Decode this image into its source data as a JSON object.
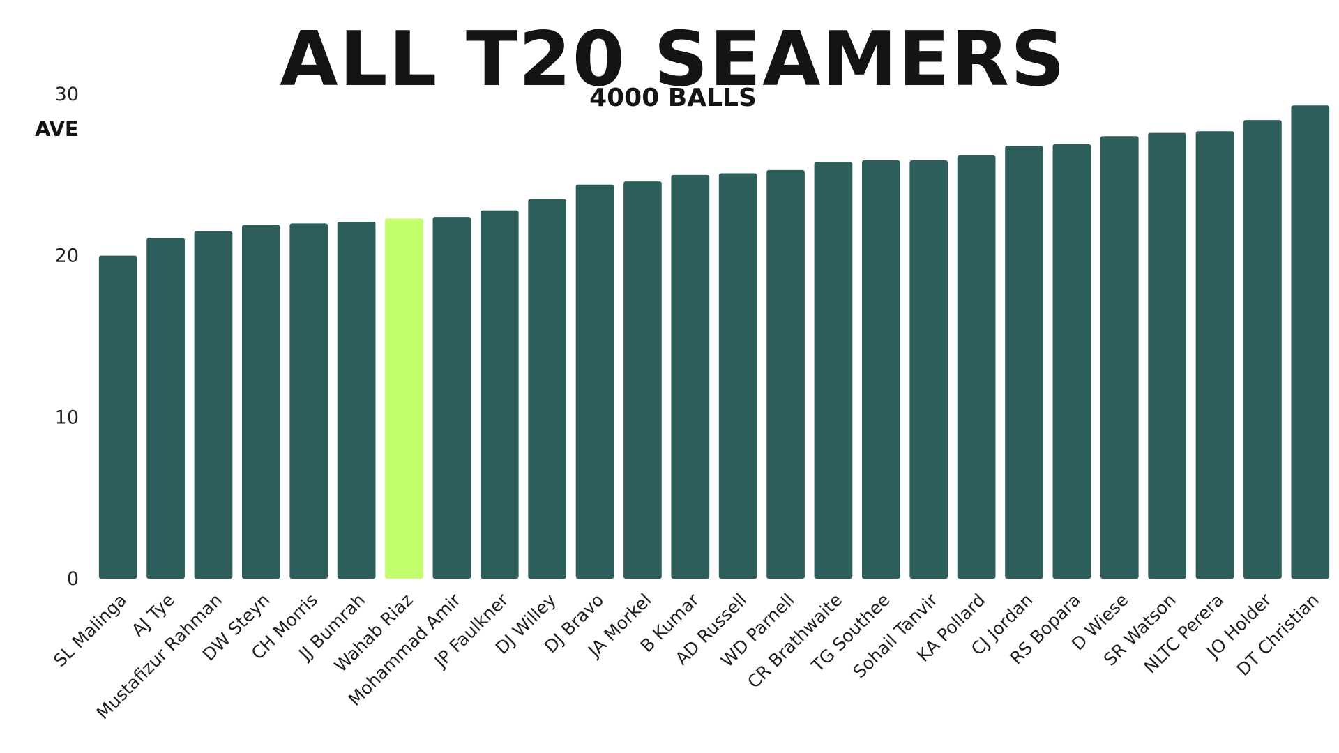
{
  "chart_data": {
    "type": "bar",
    "title": "ALL T20 SEAMERS",
    "subtitle": "4000 BALLS",
    "xlabel": "",
    "ylabel": "AVE",
    "ylim": [
      0,
      30
    ],
    "yticks": [
      "0",
      "10",
      "20",
      "30"
    ],
    "grid": false,
    "bar_color": "#2e5e5b",
    "highlight_color": "#c3ff6c",
    "highlight_category": "Wahab Riaz",
    "categories": [
      "SL Malinga",
      "AJ Tye",
      "Mustafizur Rahman",
      "DW Steyn",
      "CH Morris",
      "JJ Bumrah",
      "Wahab Riaz",
      "Mohammad Amir",
      "JP Faulkner",
      "DJ Willey",
      "DJ Bravo",
      "JA Morkel",
      "B Kumar",
      "AD Russell",
      "WD Parnell",
      "CR Brathwaite",
      "TG Southee",
      "Sohail Tanvir",
      "KA Pollard",
      "CJ Jordan",
      "RS Bopara",
      "D Wiese",
      "SR Watson",
      "NLTC Perera",
      "JO Holder",
      "DT Christian"
    ],
    "values": [
      20.0,
      21.1,
      21.5,
      21.9,
      22.0,
      22.1,
      22.3,
      22.4,
      22.8,
      23.5,
      24.4,
      24.6,
      25.0,
      25.1,
      25.3,
      25.8,
      25.9,
      25.9,
      26.2,
      26.8,
      26.9,
      27.4,
      27.6,
      27.7,
      28.4,
      29.3
    ]
  }
}
